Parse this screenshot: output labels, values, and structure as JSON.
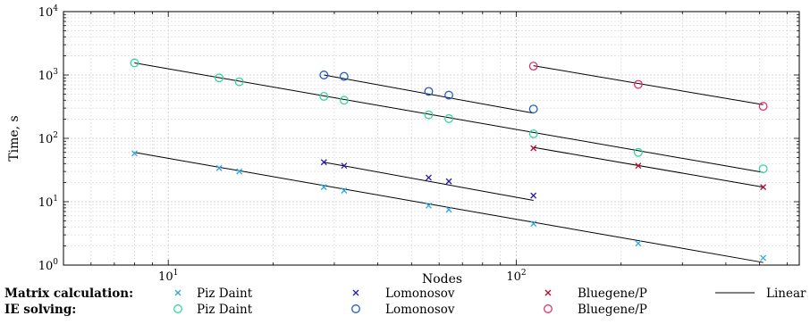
{
  "chart_data": {
    "type": "scatter",
    "xlabel": "Nodes",
    "ylabel": "Time, s",
    "xscale": "log",
    "yscale": "log",
    "xlim": [
      5,
      650
    ],
    "ylim": [
      1,
      10000
    ],
    "grid": true,
    "legend_position": "bottom",
    "x_tick_labels": [
      {
        "value": 10,
        "base": "10",
        "exp": "1"
      },
      {
        "value": 100,
        "base": "10",
        "exp": "2"
      }
    ],
    "y_tick_labels": [
      {
        "value": 1,
        "base": "10",
        "exp": "0"
      },
      {
        "value": 10,
        "base": "10",
        "exp": "1"
      },
      {
        "value": 100,
        "base": "10",
        "exp": "2"
      },
      {
        "value": 1000,
        "base": "10",
        "exp": "3"
      },
      {
        "value": 10000,
        "base": "10",
        "exp": "4"
      }
    ],
    "legend": {
      "row_labels": [
        "Matrix calculation:",
        "IE solving:"
      ],
      "linear_label": "Linear"
    },
    "series": [
      {
        "name": "Piz Daint",
        "group": "Matrix calculation",
        "marker": "x",
        "color": "#2fa8e6",
        "x": [
          8,
          14,
          16,
          28,
          32,
          56,
          64,
          112,
          224,
          512
        ],
        "y": [
          58,
          34,
          30,
          17,
          15,
          8.7,
          7.5,
          4.5,
          2.2,
          1.3
        ],
        "fit": {
          "x": [
            8,
            512
          ],
          "y": [
            60,
            1.1
          ]
        }
      },
      {
        "name": "Lomonosov",
        "group": "Matrix calculation",
        "marker": "x",
        "color": "#2a1fa8",
        "x": [
          28,
          32,
          56,
          64,
          112
        ],
        "y": [
          42,
          37,
          24,
          21,
          12.5
        ],
        "fit": {
          "x": [
            28,
            112
          ],
          "y": [
            42,
            10.5
          ]
        }
      },
      {
        "name": "Bluegene/P",
        "group": "Matrix calculation",
        "marker": "x",
        "color": "#b01030",
        "x": [
          112,
          224,
          512
        ],
        "y": [
          70,
          37,
          17
        ],
        "fit": {
          "x": [
            112,
            512
          ],
          "y": [
            72,
            17
          ]
        }
      },
      {
        "name": "Piz Daint",
        "group": "IE solving",
        "marker": "o",
        "color": "#33d6a0",
        "x": [
          8,
          14,
          16,
          28,
          32,
          56,
          64,
          112,
          224,
          512
        ],
        "y": [
          1550,
          900,
          780,
          460,
          400,
          235,
          205,
          118,
          60,
          33
        ],
        "fit": {
          "x": [
            8,
            512
          ],
          "y": [
            1550,
            29
          ]
        }
      },
      {
        "name": "Lomonosov",
        "group": "IE solving",
        "marker": "o",
        "color": "#1f5fc0",
        "x": [
          28,
          32,
          56,
          64,
          112
        ],
        "y": [
          1000,
          950,
          550,
          480,
          290
        ],
        "fit": {
          "x": [
            28,
            112
          ],
          "y": [
            1000,
            250
          ]
        }
      },
      {
        "name": "Bluegene/P",
        "group": "IE solving",
        "marker": "o",
        "color": "#e0306a",
        "x": [
          112,
          224,
          512
        ],
        "y": [
          1380,
          710,
          320
        ],
        "fit": {
          "x": [
            112,
            512
          ],
          "y": [
            1400,
            340
          ]
        }
      }
    ]
  }
}
